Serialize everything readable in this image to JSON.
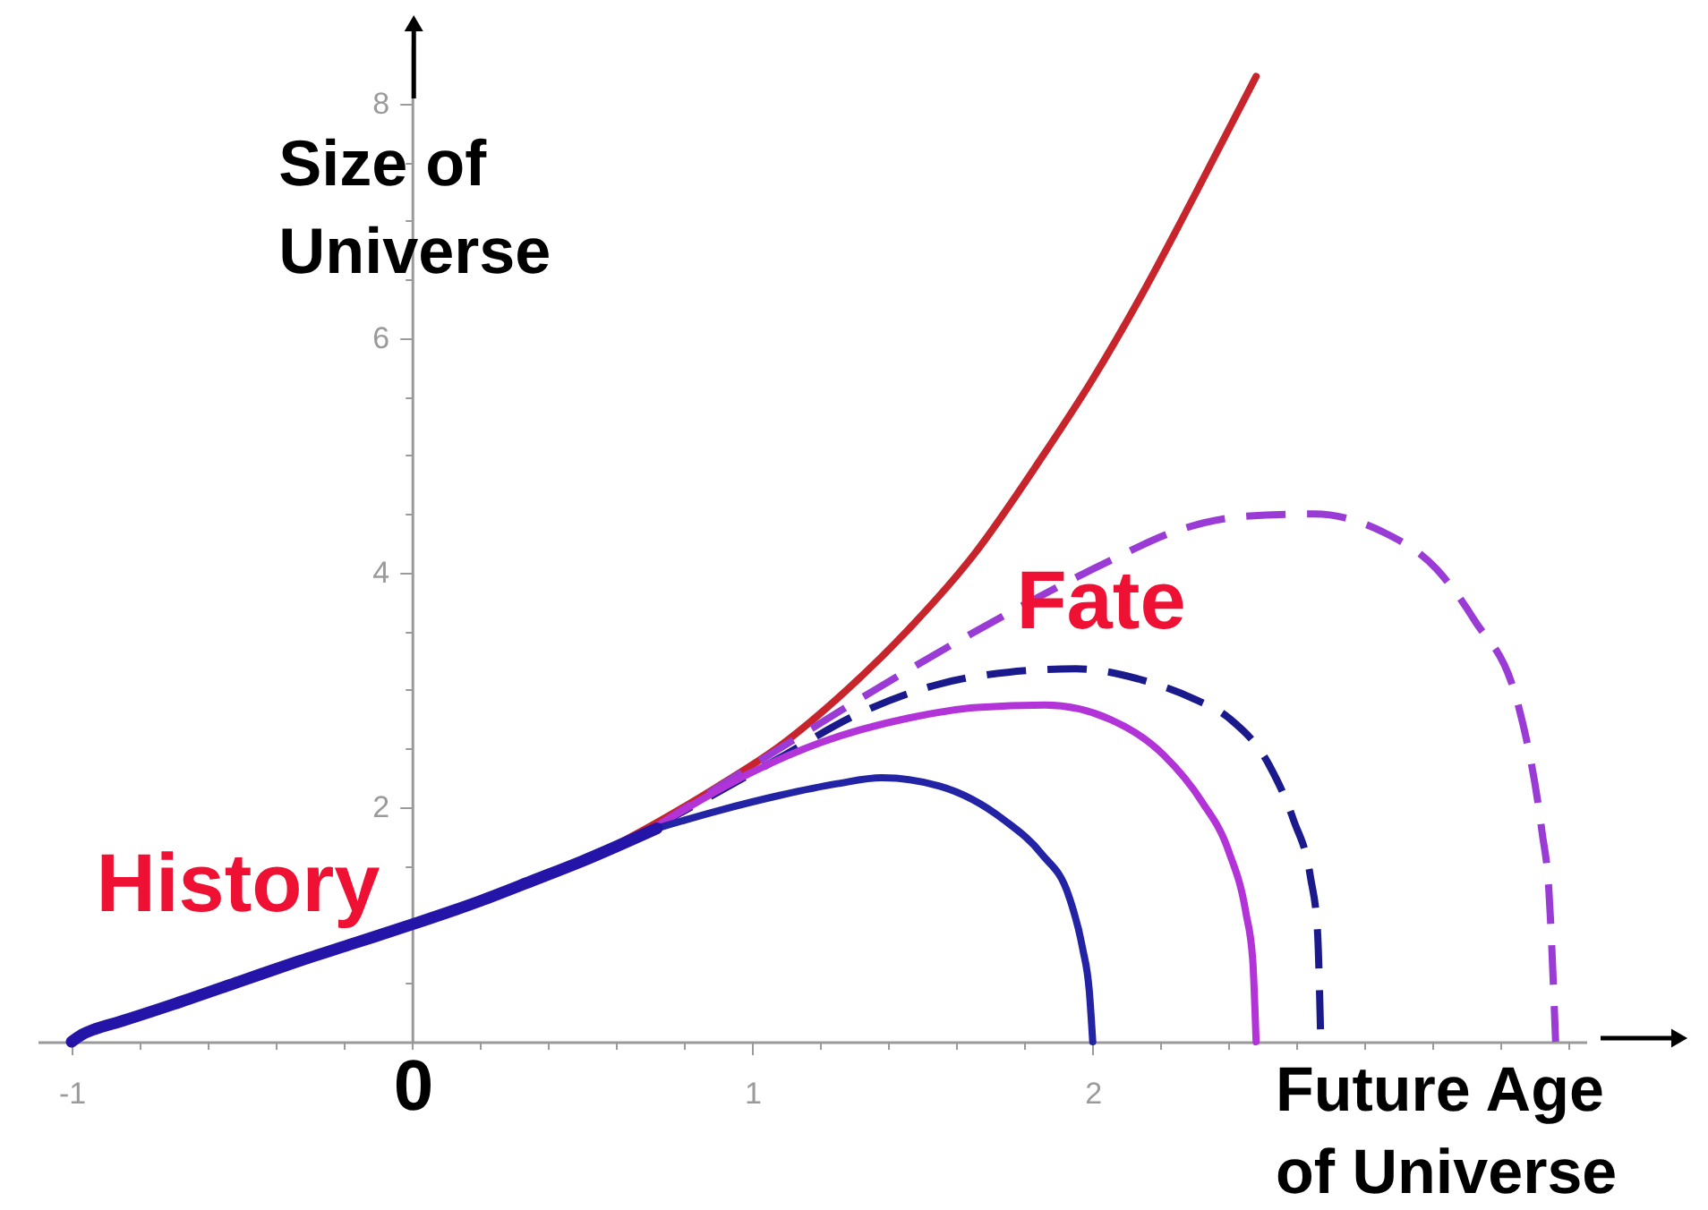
{
  "chart_data": {
    "type": "line",
    "xlabel": "Future Age of Universe",
    "ylabel": "Size of Universe",
    "xlim": [
      -1.1,
      3.45
    ],
    "ylim": [
      0,
      8.5
    ],
    "xticks": [
      -1,
      {
        "value": -0.8,
        "label": null
      },
      {
        "value": -0.6,
        "label": null
      },
      {
        "value": -0.4,
        "label": null
      },
      {
        "value": -0.2,
        "label": null
      },
      {
        "value": 0,
        "label": null
      },
      {
        "value": 0.2,
        "label": null
      },
      {
        "value": 0.4,
        "label": null
      },
      {
        "value": 0.6,
        "label": null
      },
      {
        "value": 0.8,
        "label": null
      },
      1,
      {
        "value": 1.2,
        "label": null
      },
      {
        "value": 1.4,
        "label": null
      },
      {
        "value": 1.6,
        "label": null
      },
      {
        "value": 1.8,
        "label": null
      },
      2,
      {
        "value": 2.2,
        "label": null
      },
      {
        "value": 2.4,
        "label": null
      },
      {
        "value": 2.6,
        "label": null
      },
      {
        "value": 2.8,
        "label": null
      },
      {
        "value": 3,
        "label": null
      },
      {
        "value": 3.2,
        "label": null
      },
      {
        "value": 3.4,
        "label": null
      }
    ],
    "yticks": [
      {
        "value": 0.5,
        "label": null
      },
      {
        "value": 1,
        "label": null
      },
      {
        "value": 1.5,
        "label": null
      },
      2,
      {
        "value": 2.5,
        "label": null
      },
      {
        "value": 3,
        "label": null
      },
      {
        "value": 3.5,
        "label": null
      },
      4,
      {
        "value": 4.5,
        "label": null
      },
      {
        "value": 5,
        "label": null
      },
      {
        "value": 5.5,
        "label": null
      },
      6,
      {
        "value": 6.5,
        "label": null
      },
      {
        "value": 7,
        "label": null
      },
      {
        "value": 7.5,
        "label": null
      },
      8
    ],
    "series": [
      {
        "color": "#c8242c",
        "line_style": "solid",
        "x": [
          0.6,
          0.72,
          0.9,
          1.08,
          1.27,
          1.46,
          1.65,
          1.85,
          2.0,
          2.15,
          2.3,
          2.48
        ],
        "values": [
          1.68,
          1.87,
          2.18,
          2.52,
          2.98,
          3.52,
          4.15,
          4.98,
          5.65,
          6.4,
          7.22,
          8.23
        ]
      },
      {
        "color": "#9b3bd6",
        "line_style": "dashed",
        "x": [
          0.72,
          1.08,
          1.36,
          1.75,
          2.05,
          2.24,
          2.45,
          2.65,
          2.85,
          3.01,
          3.12,
          3.25,
          3.32,
          3.34,
          3.36
        ],
        "values": [
          1.84,
          2.5,
          3.0,
          3.65,
          4.1,
          4.35,
          4.48,
          4.5,
          4.35,
          4.03,
          3.6,
          2.87,
          1.79,
          1.3,
          0
        ]
      },
      {
        "color": "#1a1a8c",
        "line_style": "dashed",
        "x": [
          0.72,
          1.08,
          1.3,
          1.55,
          1.75,
          1.95,
          2.15,
          2.3,
          2.4,
          2.52,
          2.59,
          2.64,
          2.66,
          2.67
        ],
        "values": [
          1.84,
          2.42,
          2.78,
          3.05,
          3.15,
          3.18,
          3.08,
          2.92,
          2.76,
          2.35,
          1.89,
          1.4,
          0.96,
          0
        ]
      },
      {
        "color": "#b234d8",
        "line_style": "solid",
        "x": [
          0.72,
          1.0,
          1.2,
          1.46,
          1.66,
          1.86,
          2.05,
          2.21,
          2.32,
          2.4,
          2.45,
          2.47,
          2.48
        ],
        "values": [
          1.84,
          2.3,
          2.55,
          2.76,
          2.85,
          2.87,
          2.75,
          2.44,
          2.05,
          1.62,
          1.1,
          0.7,
          0
        ]
      },
      {
        "color": "#2323a6",
        "line_style": "solid",
        "x": [
          0.72,
          0.9,
          1.08,
          1.25,
          1.38,
          1.55,
          1.74,
          1.85,
          1.93,
          1.97,
          1.99,
          2.0
        ],
        "values": [
          1.82,
          1.97,
          2.1,
          2.2,
          2.25,
          2.18,
          1.89,
          1.6,
          1.24,
          0.8,
          0.43,
          0
        ]
      },
      {
        "color": "#2414a8",
        "line_style": "solid",
        "x": [
          -1,
          -0.97,
          -0.93,
          -0.86,
          -0.69,
          -0.5,
          -0.34,
          -0.17,
          0,
          0.2,
          0.36,
          0.5,
          0.72
        ],
        "values": [
          0,
          0.06,
          0.11,
          0.17,
          0.33,
          0.52,
          0.68,
          0.84,
          1.0,
          1.2,
          1.38,
          1.54,
          1.82
        ]
      }
    ],
    "annotations": [
      "History",
      "Fate",
      "0"
    ]
  }
}
